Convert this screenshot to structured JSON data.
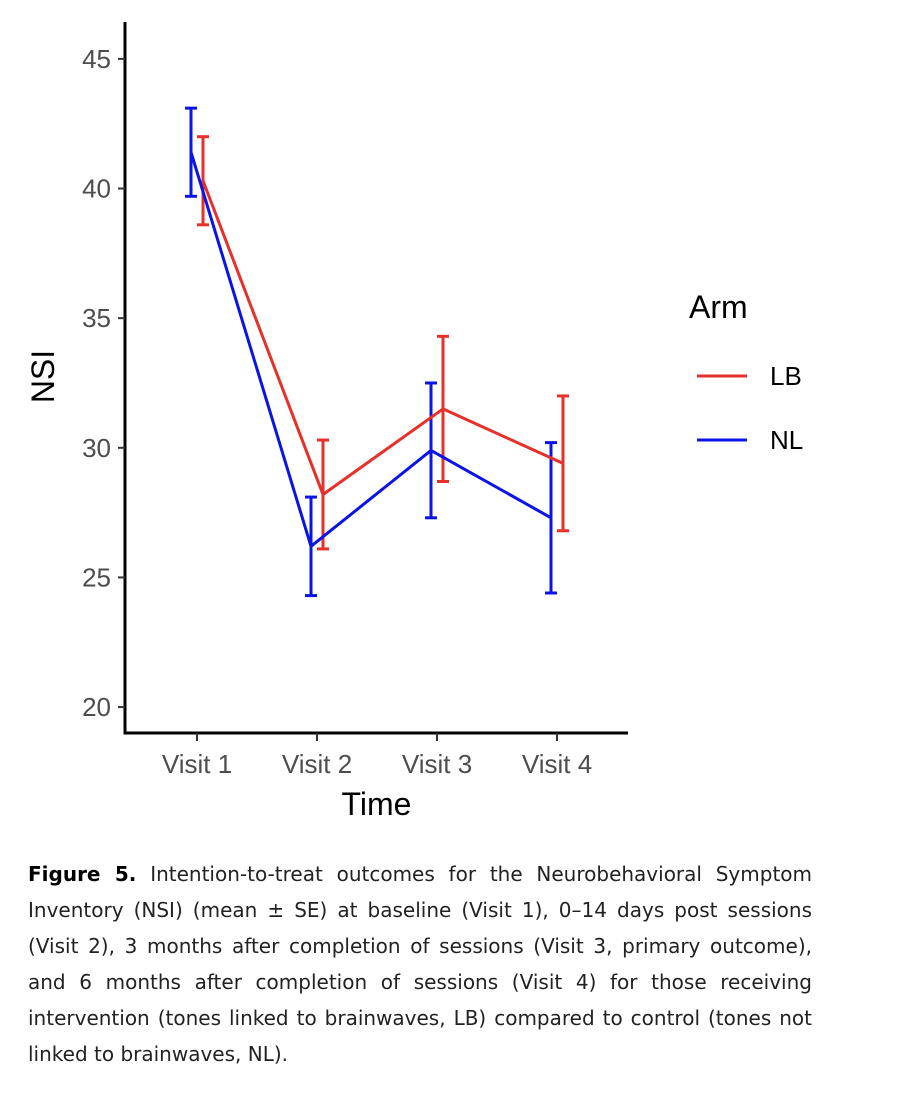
{
  "chart_data": {
    "type": "line",
    "categories": [
      "Visit 1",
      "Visit 2",
      "Visit 3",
      "Visit 4"
    ],
    "series": [
      {
        "name": "LB",
        "color": "#e8302b",
        "values": [
          40.3,
          28.2,
          31.5,
          29.4
        ],
        "err": [
          1.7,
          2.1,
          2.8,
          2.6
        ]
      },
      {
        "name": "NL",
        "color": "#0b14e8",
        "values": [
          41.4,
          26.2,
          29.9,
          27.3
        ],
        "err": [
          1.7,
          1.9,
          2.6,
          2.9
        ]
      }
    ],
    "title": "",
    "xlabel": "Time",
    "ylabel": "NSI",
    "ylim": [
      19.0,
      46.5
    ],
    "yticks": [
      20,
      25,
      30,
      35,
      40,
      45
    ],
    "legend_title": "Arm",
    "legend_position": "right",
    "grid": false
  },
  "caption": {
    "label": "Figure 5.",
    "text": "Intention-to-treat outcomes for the Neurobehavioral Symptom Inventory (NSI) (mean ± SE) at baseline (Visit 1), 0–14 days post sessions (Visit 2), 3 months after completion of sessions (Visit 3, primary outcome), and 6 months after completion of sessions (Visit 4) for those receiving intervention (tones linked to brainwaves, LB) compared to control (tones not linked to brainwaves, NL)."
  }
}
